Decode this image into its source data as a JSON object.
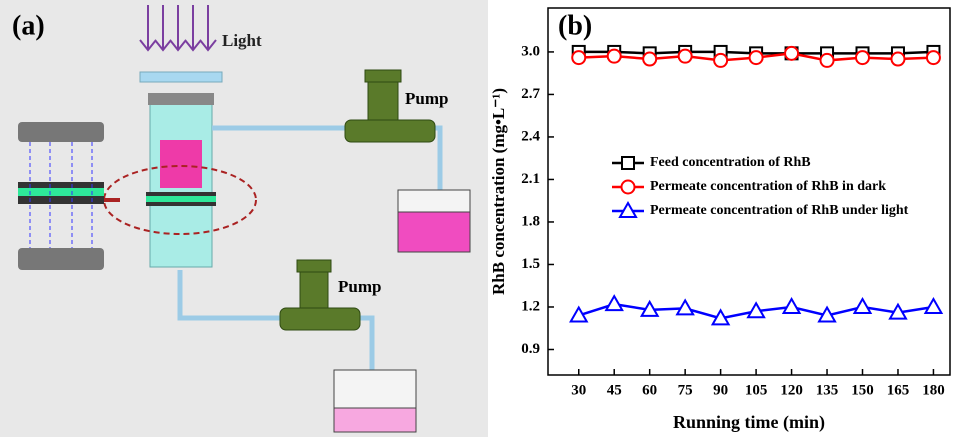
{
  "diagram": {
    "label": "(a)",
    "light": "Light",
    "pumps": [
      "Pump",
      "Pump"
    ]
  },
  "chart_data": {
    "type": "line",
    "panel_label": "(b)",
    "x_label": "Running time (min)",
    "y_label": "RhB concentration (mg•L⁻¹)",
    "x": [
      30,
      45,
      60,
      75,
      90,
      105,
      120,
      135,
      150,
      165,
      180
    ],
    "xlim": [
      17,
      187
    ],
    "xticks": [
      30,
      45,
      60,
      75,
      90,
      105,
      120,
      135,
      150,
      165,
      180
    ],
    "ylim": [
      0.72,
      3.31
    ],
    "yticks": [
      0.9,
      1.2,
      1.5,
      1.8,
      2.1,
      2.4,
      2.7,
      {
        "value": 3,
        "label": "3.0"
      }
    ],
    "legend": "center right",
    "series": [
      {
        "name": "Feed concentration of RhB",
        "color": "#000000",
        "marker": "square",
        "values": [
          3.0,
          3.0,
          2.99,
          3.0,
          3.0,
          2.99,
          2.99,
          2.99,
          2.99,
          2.99,
          3.0
        ]
      },
      {
        "name": "Permeate concentration of RhB in dark",
        "color": "#ff0000",
        "marker": "circle",
        "values": [
          2.96,
          2.97,
          2.95,
          2.97,
          2.94,
          2.96,
          2.99,
          2.94,
          2.96,
          2.95,
          2.96
        ]
      },
      {
        "name": "Permeate concentration of RhB under light",
        "color": "#0000ff",
        "marker": "triangle",
        "values": [
          1.14,
          1.22,
          1.18,
          1.19,
          1.12,
          1.17,
          1.2,
          1.14,
          1.2,
          1.16,
          1.2
        ]
      }
    ]
  }
}
